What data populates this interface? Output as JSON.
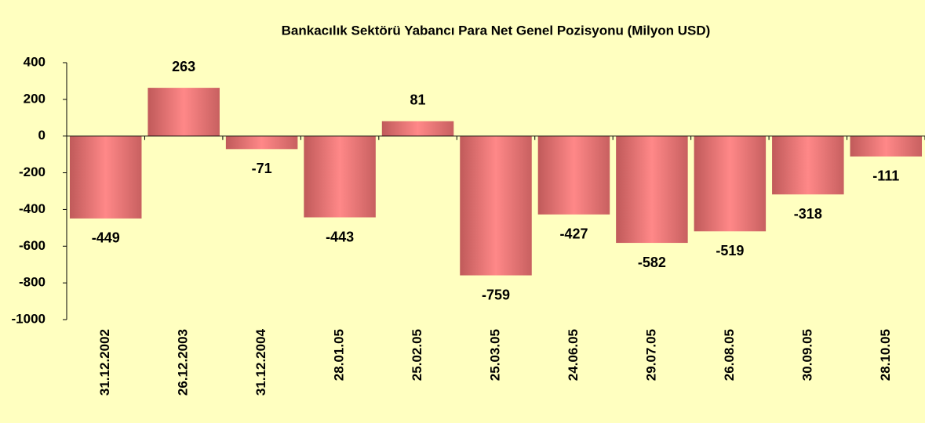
{
  "chart_data": {
    "type": "bar",
    "title": "Bankacılık Sektörü Yabancı Para Net Genel Pozisyonu (Milyon USD)",
    "categories": [
      "31.12.2002",
      "26.12.2003",
      "31.12.2004",
      "28.01.05",
      "25.02.05",
      "25.03.05",
      "24.06.05",
      "29.07.05",
      "26.08.05",
      "30.09.05",
      "28.10.05"
    ],
    "values": [
      -449,
      263,
      -71,
      -443,
      81,
      -759,
      -427,
      -582,
      -519,
      -318,
      -111
    ],
    "color": "#ff8080",
    "ylim": [
      -1000,
      400
    ],
    "yticks": [
      -1000,
      -800,
      -600,
      -400,
      -200,
      0,
      200,
      400
    ],
    "grid": false
  }
}
